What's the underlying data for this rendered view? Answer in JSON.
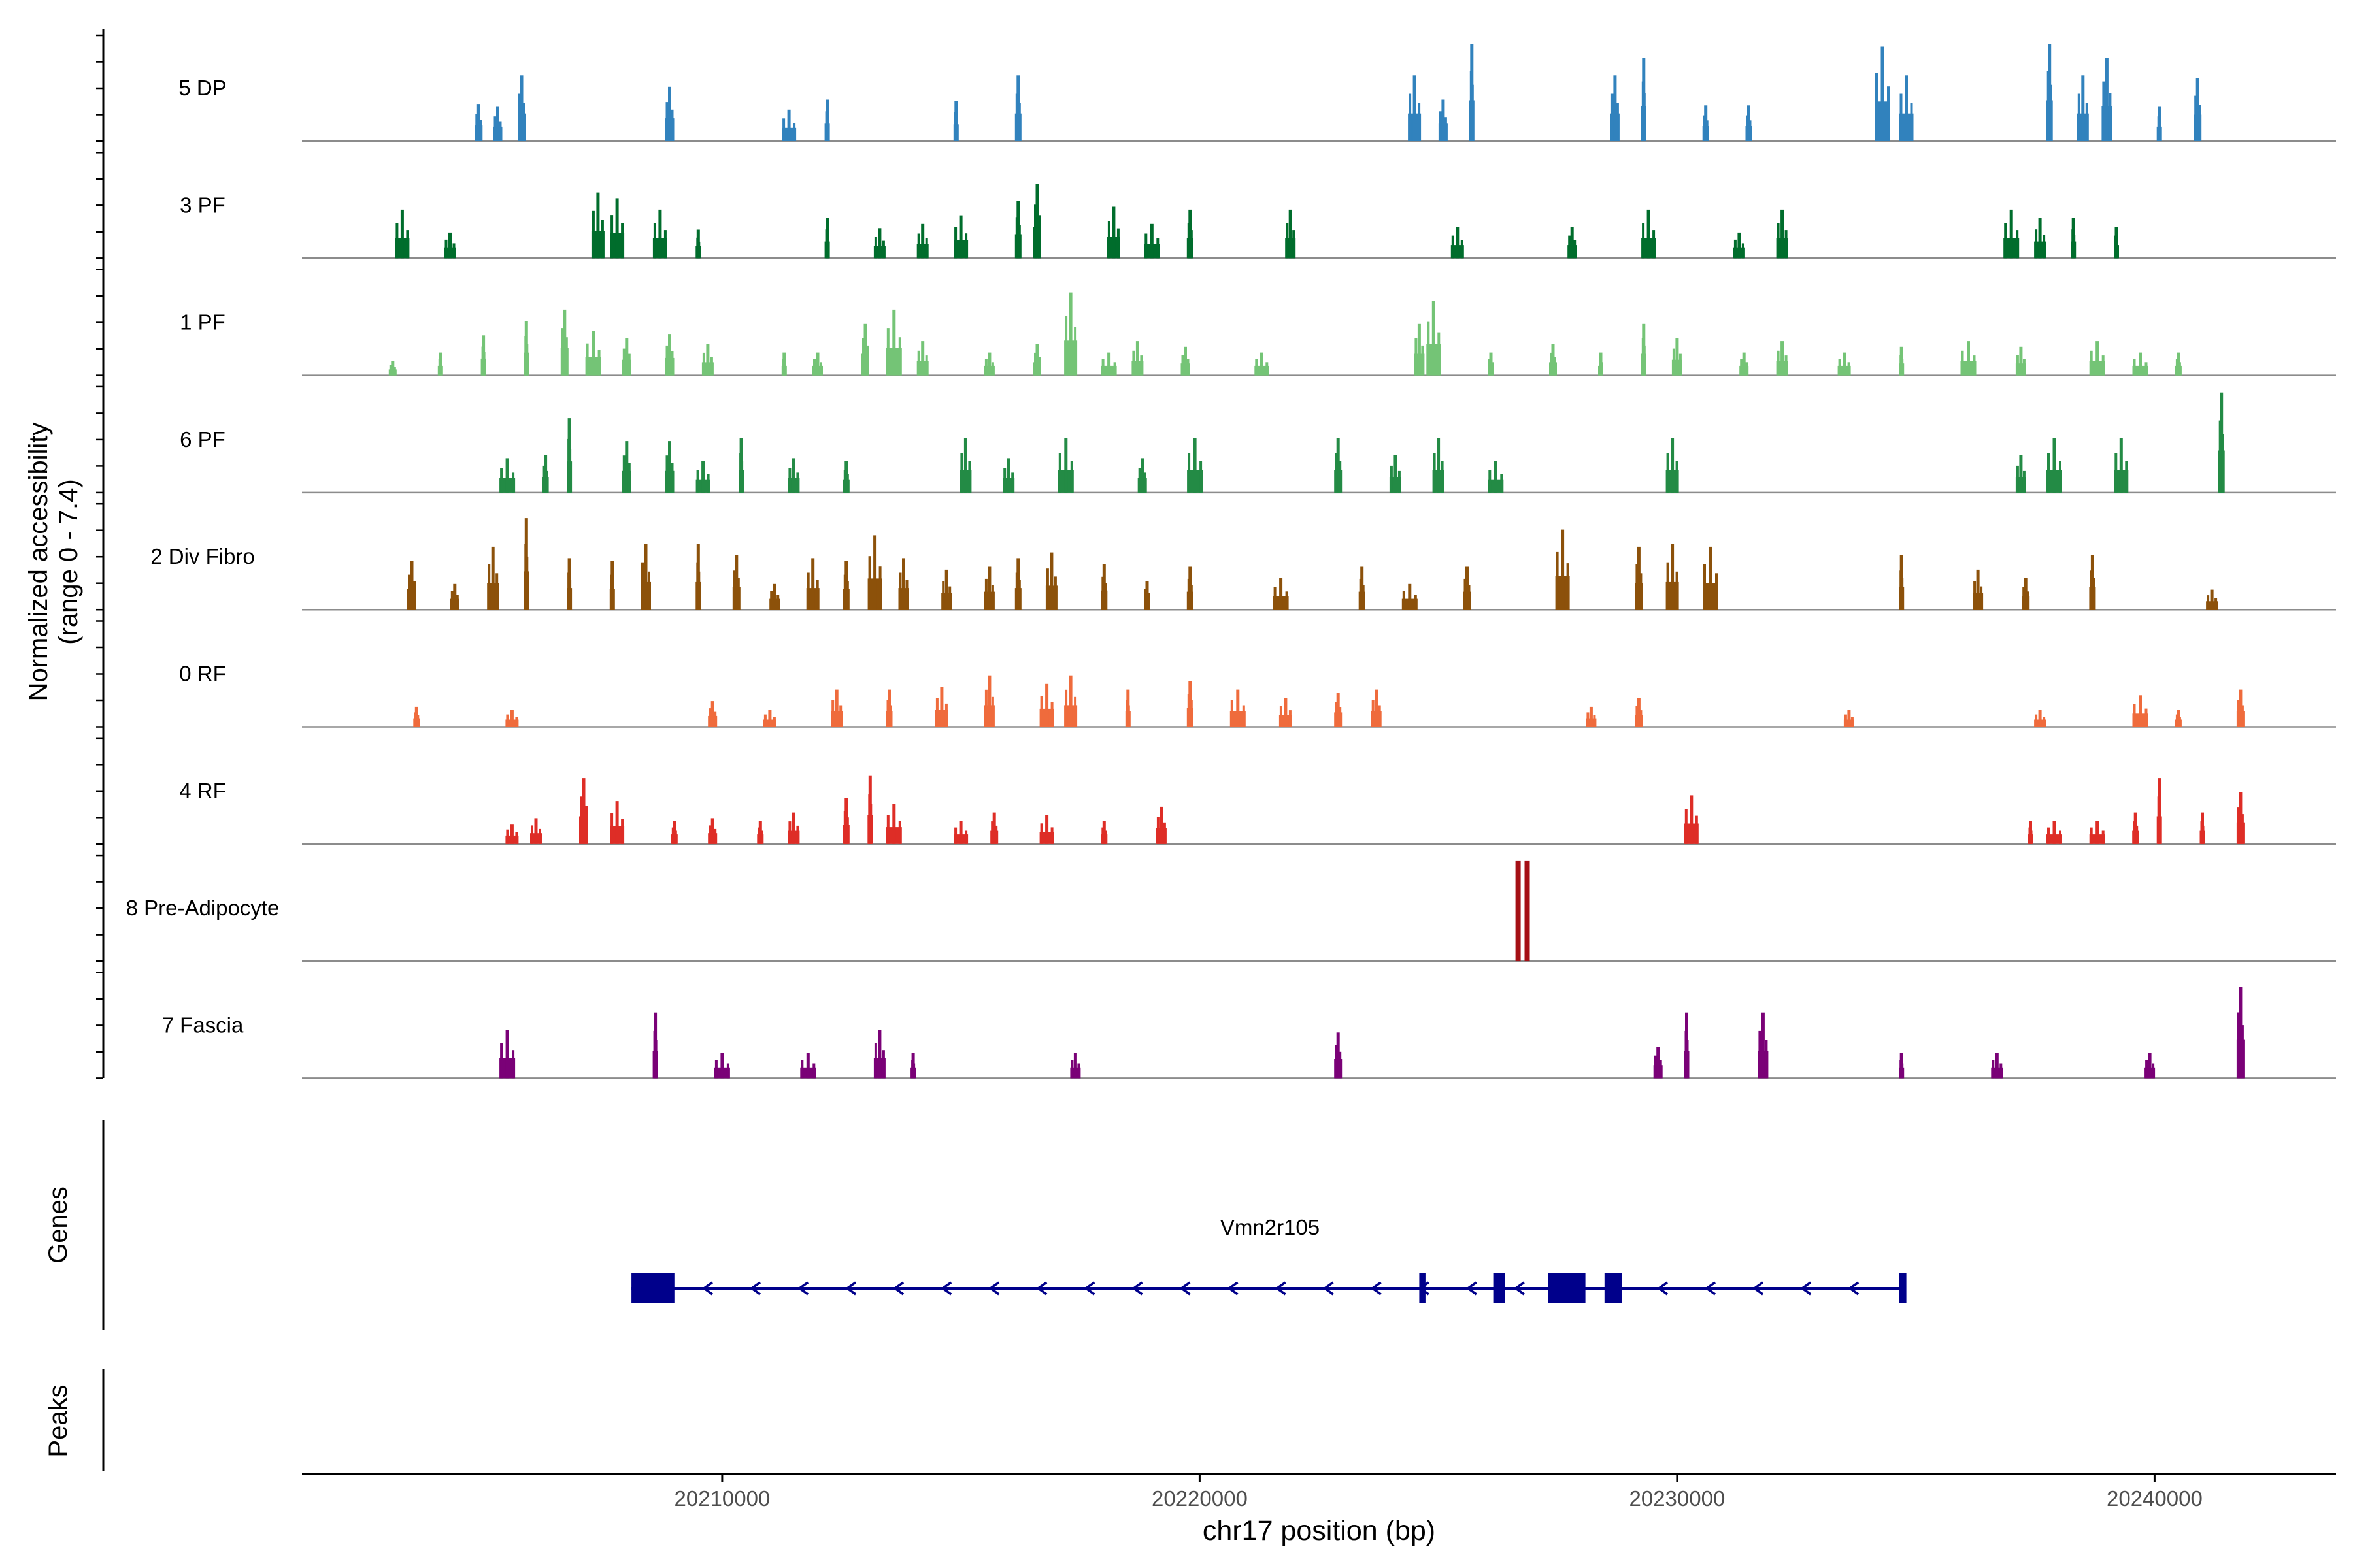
{
  "chart_data": {
    "type": "area",
    "title": "",
    "ylabel_line1": "Normalized accessibility",
    "ylabel_line2": "(range 0 - 7.4)",
    "y_range": [
      0,
      7.4
    ],
    "xlabel": "chr17 position (bp)",
    "x_range": [
      20201200,
      20243800
    ],
    "x_ticks": [
      {
        "value": 20210000,
        "label": "20210000"
      },
      {
        "value": 20220000,
        "label": "20220000"
      },
      {
        "value": 20230000,
        "label": "20230000"
      },
      {
        "value": 20240000,
        "label": "20240000"
      }
    ],
    "series": [
      {
        "name": "5 DP",
        "color": "#3182BD",
        "peaks": [
          [
            20204900,
            2.6
          ],
          [
            20205300,
            2.4
          ],
          [
            20205800,
            4.6
          ],
          [
            20208900,
            3.8
          ],
          [
            20211400,
            2.2
          ],
          [
            20212200,
            2.9
          ],
          [
            20214900,
            2.8
          ],
          [
            20216200,
            4.6
          ],
          [
            20224500,
            4.6
          ],
          [
            20225100,
            2.9
          ],
          [
            20225700,
            6.8
          ],
          [
            20228700,
            4.6
          ],
          [
            20229300,
            5.8
          ],
          [
            20230600,
            2.5
          ],
          [
            20231500,
            2.5
          ],
          [
            20234300,
            6.6
          ],
          [
            20234800,
            4.6
          ],
          [
            20237800,
            6.8
          ],
          [
            20238500,
            4.6
          ],
          [
            20239000,
            5.8
          ],
          [
            20240100,
            2.4
          ],
          [
            20240900,
            4.4
          ]
        ]
      },
      {
        "name": "3 PF",
        "color": "#006D2C",
        "peaks": [
          [
            20203300,
            3.4
          ],
          [
            20204300,
            1.8
          ],
          [
            20207400,
            4.6
          ],
          [
            20207800,
            4.2
          ],
          [
            20208700,
            3.4
          ],
          [
            20209500,
            2.0
          ],
          [
            20212200,
            2.8
          ],
          [
            20213300,
            2.1
          ],
          [
            20214200,
            2.4
          ],
          [
            20215000,
            3.0
          ],
          [
            20216200,
            4.0
          ],
          [
            20216600,
            5.2
          ],
          [
            20218200,
            3.6
          ],
          [
            20219000,
            2.4
          ],
          [
            20219800,
            3.4
          ],
          [
            20221900,
            3.4
          ],
          [
            20225400,
            2.2
          ],
          [
            20227800,
            2.2
          ],
          [
            20229400,
            3.4
          ],
          [
            20231300,
            1.8
          ],
          [
            20232200,
            3.4
          ],
          [
            20237000,
            3.4
          ],
          [
            20237600,
            2.8
          ],
          [
            20238300,
            2.8
          ],
          [
            20239200,
            2.2
          ]
        ]
      },
      {
        "name": "1 PF",
        "color": "#74C476",
        "peaks": [
          [
            20203100,
            1.0
          ],
          [
            20204100,
            1.6
          ],
          [
            20205000,
            2.8
          ],
          [
            20205900,
            3.8
          ],
          [
            20206700,
            4.6
          ],
          [
            20207300,
            3.1
          ],
          [
            20208000,
            2.6
          ],
          [
            20208900,
            2.9
          ],
          [
            20209700,
            2.2
          ],
          [
            20211300,
            1.6
          ],
          [
            20212000,
            1.6
          ],
          [
            20213000,
            3.6
          ],
          [
            20213600,
            4.6
          ],
          [
            20214200,
            2.4
          ],
          [
            20215600,
            1.6
          ],
          [
            20216600,
            2.2
          ],
          [
            20217300,
            5.8
          ],
          [
            20218100,
            1.6
          ],
          [
            20218700,
            2.4
          ],
          [
            20219700,
            2.0
          ],
          [
            20221300,
            1.6
          ],
          [
            20224600,
            3.6
          ],
          [
            20224900,
            5.2
          ],
          [
            20226100,
            1.6
          ],
          [
            20227400,
            2.2
          ],
          [
            20228400,
            1.6
          ],
          [
            20229300,
            3.6
          ],
          [
            20230000,
            2.6
          ],
          [
            20231400,
            1.6
          ],
          [
            20232200,
            2.4
          ],
          [
            20233500,
            1.6
          ],
          [
            20234700,
            2.0
          ],
          [
            20236100,
            2.4
          ],
          [
            20237200,
            2.0
          ],
          [
            20238800,
            2.4
          ],
          [
            20239700,
            1.6
          ],
          [
            20240500,
            1.6
          ]
        ]
      },
      {
        "name": "6 PF",
        "color": "#238B45",
        "peaks": [
          [
            20205500,
            2.4
          ],
          [
            20206300,
            2.6
          ],
          [
            20206800,
            5.2
          ],
          [
            20208000,
            3.6
          ],
          [
            20208900,
            3.6
          ],
          [
            20209600,
            2.2
          ],
          [
            20210400,
            3.8
          ],
          [
            20211500,
            2.4
          ],
          [
            20212600,
            2.2
          ],
          [
            20215100,
            3.8
          ],
          [
            20216000,
            2.4
          ],
          [
            20217200,
            3.8
          ],
          [
            20218800,
            2.4
          ],
          [
            20219900,
            3.8
          ],
          [
            20222900,
            3.8
          ],
          [
            20224100,
            2.6
          ],
          [
            20225000,
            3.8
          ],
          [
            20226200,
            2.2
          ],
          [
            20229900,
            3.8
          ],
          [
            20237200,
            2.6
          ],
          [
            20237900,
            3.8
          ],
          [
            20239300,
            3.8
          ],
          [
            20241400,
            7.0
          ]
        ]
      },
      {
        "name": "2 Div Fibro",
        "color": "#8C510A",
        "peaks": [
          [
            20203500,
            3.4
          ],
          [
            20204400,
            1.8
          ],
          [
            20205200,
            4.4
          ],
          [
            20205900,
            6.4
          ],
          [
            20206800,
            3.6
          ],
          [
            20207700,
            3.4
          ],
          [
            20208400,
            4.6
          ],
          [
            20209500,
            4.6
          ],
          [
            20210300,
            3.8
          ],
          [
            20211100,
            1.8
          ],
          [
            20211900,
            3.6
          ],
          [
            20212600,
            3.4
          ],
          [
            20213200,
            5.2
          ],
          [
            20213800,
            3.6
          ],
          [
            20214700,
            2.8
          ],
          [
            20215600,
            3.0
          ],
          [
            20216200,
            3.6
          ],
          [
            20216900,
            4.0
          ],
          [
            20218000,
            3.2
          ],
          [
            20218900,
            2.0
          ],
          [
            20219800,
            3.0
          ],
          [
            20221700,
            2.2
          ],
          [
            20223400,
            3.0
          ],
          [
            20224400,
            1.8
          ],
          [
            20225600,
            3.0
          ],
          [
            20227600,
            5.6
          ],
          [
            20229200,
            4.4
          ],
          [
            20229900,
            4.6
          ],
          [
            20230700,
            4.4
          ],
          [
            20234700,
            3.8
          ],
          [
            20236300,
            2.8
          ],
          [
            20237300,
            2.2
          ],
          [
            20238700,
            3.8
          ],
          [
            20241200,
            1.4
          ]
        ]
      },
      {
        "name": "0 RF",
        "color": "#EF6B3C",
        "peaks": [
          [
            20203600,
            1.4
          ],
          [
            20205600,
            1.2
          ],
          [
            20209800,
            1.8
          ],
          [
            20211000,
            1.2
          ],
          [
            20212400,
            2.6
          ],
          [
            20213500,
            2.6
          ],
          [
            20214600,
            2.8
          ],
          [
            20215600,
            3.6
          ],
          [
            20216800,
            3.0
          ],
          [
            20217300,
            3.6
          ],
          [
            20218500,
            2.6
          ],
          [
            20219800,
            3.2
          ],
          [
            20220800,
            2.6
          ],
          [
            20221800,
            2.0
          ],
          [
            20222900,
            2.4
          ],
          [
            20223700,
            2.6
          ],
          [
            20228200,
            1.4
          ],
          [
            20229200,
            2.0
          ],
          [
            20233600,
            1.2
          ],
          [
            20237600,
            1.2
          ],
          [
            20239700,
            2.2
          ],
          [
            20240500,
            1.2
          ],
          [
            20241800,
            2.6
          ]
        ]
      },
      {
        "name": "4 RF",
        "color": "#DE2D26",
        "peaks": [
          [
            20205600,
            1.4
          ],
          [
            20206100,
            1.8
          ],
          [
            20207100,
            4.6
          ],
          [
            20207800,
            3.0
          ],
          [
            20209000,
            1.6
          ],
          [
            20209800,
            1.8
          ],
          [
            20210800,
            1.6
          ],
          [
            20211500,
            2.2
          ],
          [
            20212600,
            3.2
          ],
          [
            20213100,
            4.8
          ],
          [
            20213600,
            2.8
          ],
          [
            20215000,
            1.6
          ],
          [
            20215700,
            2.2
          ],
          [
            20216800,
            2.0
          ],
          [
            20218000,
            1.6
          ],
          [
            20219200,
            2.6
          ],
          [
            20230300,
            3.4
          ],
          [
            20237400,
            1.6
          ],
          [
            20237900,
            1.6
          ],
          [
            20238800,
            1.6
          ],
          [
            20239600,
            2.2
          ],
          [
            20240100,
            4.6
          ],
          [
            20241000,
            2.2
          ],
          [
            20241800,
            3.6
          ]
        ]
      },
      {
        "name": "8 Pre-Adipocyte",
        "color": "#A50F15",
        "peaks": []
      },
      {
        "name": "7 Fascia",
        "color": "#7A0177",
        "peaks": [
          [
            20205500,
            3.4
          ],
          [
            20208600,
            4.6
          ],
          [
            20210000,
            1.8
          ],
          [
            20211800,
            1.8
          ],
          [
            20213300,
            3.4
          ],
          [
            20214000,
            1.8
          ],
          [
            20217400,
            1.8
          ],
          [
            20222900,
            3.2
          ],
          [
            20229600,
            2.2
          ],
          [
            20230200,
            4.6
          ],
          [
            20231800,
            4.6
          ],
          [
            20234700,
            1.8
          ],
          [
            20236700,
            1.8
          ],
          [
            20239900,
            1.8
          ],
          [
            20241800,
            6.4
          ]
        ]
      }
    ],
    "preadipocyte_bars": [
      [
        20226670,
        7.0
      ],
      [
        20226860,
        7.0
      ]
    ],
    "genes": {
      "panel_label": "Genes",
      "name": "Vmn2r105",
      "start": 20208100,
      "end": 20234800,
      "strand": "-",
      "exons": [
        [
          20208100,
          20209000
        ],
        [
          20224600,
          20224730
        ],
        [
          20226150,
          20226400
        ],
        [
          20227300,
          20228080
        ],
        [
          20228480,
          20228840
        ],
        [
          20234650,
          20234800
        ]
      ]
    },
    "peaks_panel_label": "Peaks"
  }
}
